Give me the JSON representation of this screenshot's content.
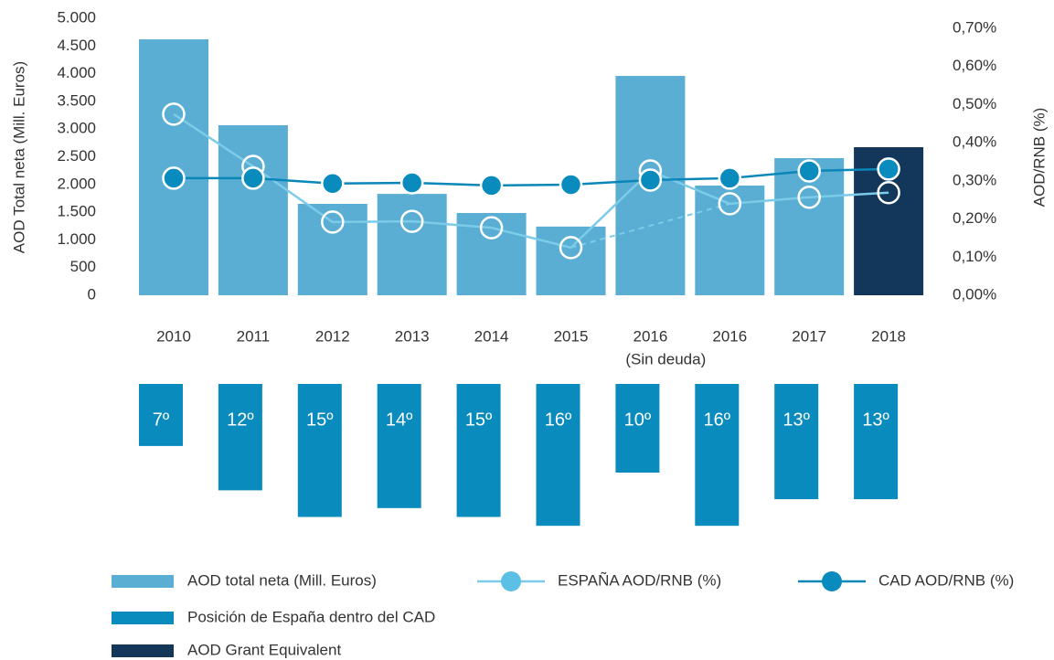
{
  "chart_data": {
    "type": "bar",
    "ylabel": "AOD Total neta (Mill. Euros)",
    "y2label": "AOD/RNB (%)",
    "categories": [
      "2010",
      "2011",
      "2012",
      "2013",
      "2014",
      "2015",
      "2016",
      "2016",
      "2017",
      "2018"
    ],
    "category_sublabels": [
      null,
      null,
      null,
      null,
      null,
      null,
      null,
      "(Sin deuda)",
      null,
      null
    ],
    "ylim": [
      0,
      5000
    ],
    "yticks": [
      0,
      500,
      {
        "value": 1000,
        "label": "1.000"
      },
      {
        "value": 1500,
        "label": "1.500"
      },
      {
        "value": 2000,
        "label": "2.000"
      },
      {
        "value": 2500,
        "label": "2.500"
      },
      {
        "value": 3000,
        "label": "3.000"
      },
      {
        "value": 3500,
        "label": "3.500"
      },
      {
        "value": 4000,
        "label": "4.000"
      },
      {
        "value": 4500,
        "label": "4.500"
      },
      {
        "value": 5000,
        "label": "5.000"
      }
    ],
    "y2lim": [
      0,
      0.7
    ],
    "y2ticks": [
      {
        "value": 0,
        "label": "0,00%"
      },
      {
        "value": 0.1,
        "label": "0,10%"
      },
      {
        "value": 0.2,
        "label": "0,20%"
      },
      {
        "value": 0.3,
        "label": "0,30%"
      },
      {
        "value": 0.4,
        "label": "0,40%"
      },
      {
        "value": 0.5,
        "label": "0,50%"
      },
      {
        "value": 0.6,
        "label": "0,60%"
      },
      {
        "value": 0.7,
        "label": "0,70%"
      }
    ],
    "grid": false,
    "series": [
      {
        "name": "AOD total neta (Mill. Euros)",
        "kind": "bar",
        "color": "#5aaed3",
        "values": [
          4620,
          3070,
          1650,
          1830,
          1485,
          1240,
          3960,
          1980,
          2475,
          null
        ]
      },
      {
        "name": "ESPAÑA AOD/RNB (%)",
        "kind": "line",
        "axis": "y2",
        "color": "#7ccbe8",
        "marker_color": "#5cc0e6",
        "values": [
          0.475,
          0.338,
          0.192,
          0.194,
          0.177,
          0.125,
          0.326,
          0.24,
          0.257,
          0.269
        ],
        "dashed_segment": [
          5,
          7
        ]
      },
      {
        "name": "CAD AOD/RNB (%)",
        "kind": "line",
        "axis": "y2",
        "color": "#0a87b8",
        "marker_color": "#0a8bbd",
        "values": [
          0.307,
          0.307,
          0.293,
          0.295,
          0.288,
          0.29,
          0.302,
          0.307,
          0.326,
          0.331
        ]
      },
      {
        "name": "Posición de España dentro del CAD",
        "kind": "rank",
        "color": "#0a8bbd",
        "values": [
          7,
          12,
          15,
          14,
          15,
          16,
          10,
          16,
          13,
          13
        ],
        "value_labels": [
          "7º",
          "12º",
          "15º",
          "14º",
          "15º",
          "16º",
          "10º",
          "16º",
          "13º",
          "13º"
        ]
      },
      {
        "name": "AOD Grant Equivalent",
        "kind": "bar",
        "color": "#13375b",
        "values": [
          null,
          null,
          null,
          null,
          null,
          null,
          null,
          null,
          null,
          2673
        ]
      }
    ]
  }
}
